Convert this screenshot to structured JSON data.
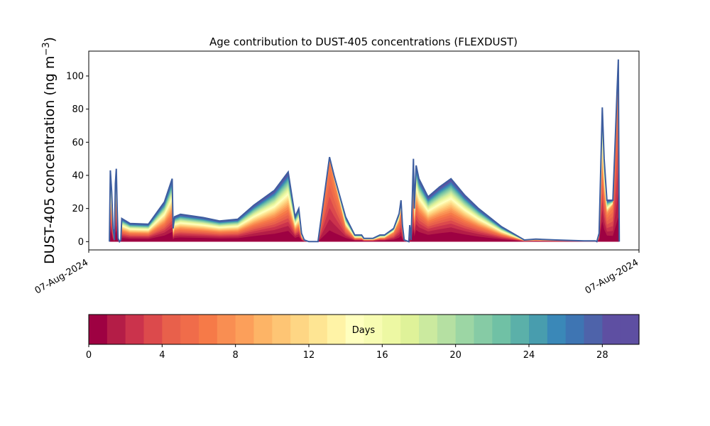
{
  "chart_data": {
    "type": "area",
    "title": "Age contribution to DUST-405 concentrations (FLEXDUST)",
    "ylabel_prefix": "DUST-405 concentration (ng m",
    "ylabel_exponent": "−3",
    "ylabel_suffix": ")",
    "xlabel": "",
    "x_tick_labels": [
      "07-Aug-2024",
      "07-Aug-2024"
    ],
    "ylim": [
      -5,
      115
    ],
    "y_ticks": [
      0,
      20,
      40,
      60,
      80,
      100
    ],
    "grid": false,
    "stacked": true,
    "series_count": 30,
    "profile": [
      [
        0.045,
        0
      ],
      [
        0.047,
        43
      ],
      [
        0.05,
        30
      ],
      [
        0.053,
        8
      ],
      [
        0.056,
        1
      ],
      [
        0.058,
        35
      ],
      [
        0.06,
        44
      ],
      [
        0.062,
        20
      ],
      [
        0.064,
        2
      ],
      [
        0.067,
        0
      ],
      [
        0.07,
        1
      ],
      [
        0.072,
        14
      ],
      [
        0.09,
        11
      ],
      [
        0.13,
        10.5
      ],
      [
        0.165,
        24
      ],
      [
        0.182,
        38
      ],
      [
        0.184,
        8
      ],
      [
        0.187,
        15
      ],
      [
        0.2,
        16.5
      ],
      [
        0.25,
        14.5
      ],
      [
        0.285,
        12.5
      ],
      [
        0.325,
        13.5
      ],
      [
        0.36,
        22
      ],
      [
        0.405,
        31
      ],
      [
        0.435,
        42
      ],
      [
        0.45,
        15
      ],
      [
        0.458,
        20
      ],
      [
        0.464,
        5
      ],
      [
        0.47,
        1
      ],
      [
        0.48,
        0
      ],
      [
        0.5,
        0
      ],
      [
        0.525,
        51
      ],
      [
        0.535,
        40
      ],
      [
        0.56,
        15
      ],
      [
        0.58,
        4
      ],
      [
        0.595,
        4
      ],
      [
        0.6,
        2
      ],
      [
        0.62,
        2
      ],
      [
        0.635,
        4
      ],
      [
        0.645,
        4
      ],
      [
        0.665,
        8
      ],
      [
        0.677,
        17
      ],
      [
        0.681,
        25
      ],
      [
        0.684,
        10
      ],
      [
        0.688,
        1
      ],
      [
        0.698,
        0
      ],
      [
        0.7,
        10
      ],
      [
        0.703,
        1
      ],
      [
        0.708,
        50
      ],
      [
        0.71,
        20
      ],
      [
        0.714,
        46
      ],
      [
        0.72,
        38
      ],
      [
        0.74,
        27
      ],
      [
        0.765,
        33
      ],
      [
        0.79,
        38
      ],
      [
        0.82,
        28
      ],
      [
        0.85,
        20
      ],
      [
        0.9,
        9
      ],
      [
        0.95,
        1
      ],
      [
        0.975,
        1.5
      ],
      [
        1.02,
        1
      ],
      [
        1.08,
        0.5
      ],
      [
        1.105,
        0.5
      ],
      [
        1.108,
        0
      ],
      [
        1.113,
        5
      ],
      [
        1.12,
        81
      ],
      [
        1.124,
        50
      ],
      [
        1.13,
        25
      ],
      [
        1.143,
        25
      ],
      [
        1.148,
        60
      ],
      [
        1.152,
        90
      ],
      [
        1.155,
        110
      ],
      [
        1.157,
        0
      ]
    ],
    "young_peaks": [
      [
        0.525,
        1.0
      ],
      [
        0.677,
        0.45
      ],
      [
        1.155,
        0.95
      ]
    ],
    "colorbar": {
      "label": "Days",
      "min": 0,
      "max": 30,
      "ticks": [
        0,
        4,
        8,
        12,
        16,
        20,
        24,
        28
      ],
      "colors": [
        "#9e0142",
        "#b41d47",
        "#cb334c",
        "#dc4a4c",
        "#e8604b",
        "#f06c4a",
        "#f67a48",
        "#f98e52",
        "#fc9f5a",
        "#fdb466",
        "#fec574",
        "#fed684",
        "#fee593",
        "#fff3a6",
        "#ffffbf",
        "#f7fcb2",
        "#edf8a3",
        "#dff299",
        "#cbea9f",
        "#b5e0a2",
        "#9cd6a4",
        "#86cba5",
        "#70c1a5",
        "#5bb0a9",
        "#489dae",
        "#3a88b8",
        "#3e75b3",
        "#4e63aa",
        "#5e4fa2",
        "#5e4fa2"
      ]
    }
  }
}
